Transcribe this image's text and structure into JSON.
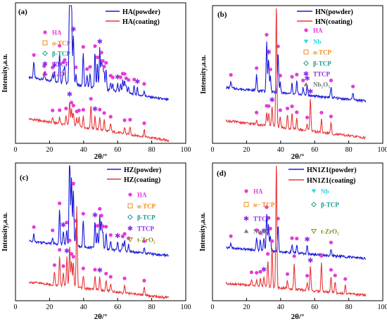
{
  "colors": {
    "powder": "#1a1adb",
    "coating": "#e8383a",
    "HA": "#e83ad8",
    "alpha_TCP": "#f08a1a",
    "beta_TCP": "#1a9a8a",
    "TTCP": "#8a2ae8",
    "CaO": "#c42ab8",
    "Nb": "#1ad8e8",
    "Nb2O5": "#777777",
    "tZrO2": "#8a8a1a"
  },
  "chart_data": [
    {
      "panel": "(a)",
      "type": "line",
      "xlabel": "2θ/°",
      "ylabel": "Intensity,a.u.",
      "xlim": [
        0,
        100
      ],
      "xticks": [
        "0",
        "20",
        "40",
        "60",
        "80",
        "100"
      ],
      "legend": [
        "HA(powder)",
        "HA(coating)"
      ],
      "phases": [
        {
          "label": "HA",
          "marker": "circle",
          "color": "HA"
        },
        {
          "label": "α-TCP",
          "marker": "square",
          "color": "alpha_TCP"
        },
        {
          "label": "β-TCP",
          "marker": "diamond",
          "color": "beta_TCP"
        },
        {
          "label": "TTCP",
          "marker": "star",
          "color": "TTCP"
        },
        {
          "label": "CaO",
          "marker": "club",
          "color": "CaO"
        }
      ],
      "series": [
        {
          "name": "HA(powder)",
          "color": "powder",
          "baseline": 0.47,
          "peaks": [
            [
              10.8,
              0.12
            ],
            [
              16.9,
              0.05
            ],
            [
              21.8,
              0.05
            ],
            [
              22.9,
              0.07
            ],
            [
              25.9,
              0.22
            ],
            [
              28.1,
              0.1
            ],
            [
              28.9,
              0.12
            ],
            [
              31.8,
              0.85
            ],
            [
              32.2,
              0.75
            ],
            [
              32.9,
              0.6
            ],
            [
              34.0,
              0.36
            ],
            [
              35.5,
              0.08
            ],
            [
              39.8,
              0.24
            ],
            [
              42.0,
              0.08
            ],
            [
              43.8,
              0.1
            ],
            [
              46.7,
              0.26
            ],
            [
              48.1,
              0.18
            ],
            [
              49.5,
              0.3
            ],
            [
              50.5,
              0.22
            ],
            [
              51.3,
              0.16
            ],
            [
              52.1,
              0.12
            ],
            [
              53.2,
              0.15
            ],
            [
              55.9,
              0.06
            ],
            [
              57.1,
              0.05
            ],
            [
              60.0,
              0.06
            ],
            [
              61.7,
              0.06
            ],
            [
              63.0,
              0.09
            ],
            [
              64.1,
              0.09
            ],
            [
              65.0,
              0.06
            ],
            [
              66.4,
              0.05
            ],
            [
              69.7,
              0.06
            ],
            [
              71.6,
              0.05
            ],
            [
              75.6,
              0.04
            ]
          ],
          "ends": [
            0.47,
            0.3
          ]
        },
        {
          "name": "HA(coating)",
          "color": "coating",
          "baseline": 0.16,
          "peaks": [
            [
              21.8,
              0.04
            ],
            [
              25.9,
              0.05
            ],
            [
              29.7,
              0.07
            ],
            [
              31.8,
              0.18
            ],
            [
              32.9,
              0.12
            ],
            [
              34.0,
              0.1
            ],
            [
              36.0,
              0.06
            ],
            [
              37.3,
              0.07
            ],
            [
              39.8,
              0.08
            ],
            [
              44.3,
              0.17
            ],
            [
              46.7,
              0.1
            ],
            [
              49.5,
              0.1
            ],
            [
              52.1,
              0.08
            ],
            [
              55.9,
              0.06
            ],
            [
              64.1,
              0.05
            ],
            [
              67.3,
              0.06
            ],
            [
              75.6,
              0.05
            ]
          ],
          "ends": [
            0.16,
            0.0
          ]
        }
      ]
    },
    {
      "panel": "(b)",
      "type": "line",
      "xlabel": "2θ/°",
      "ylabel": "Intensity,a.u.",
      "xlim": [
        0,
        100
      ],
      "xticks": [
        "0",
        "20",
        "40",
        "60",
        "80",
        "100"
      ],
      "legend": [
        "HN(powder)",
        "HN(coating)"
      ],
      "phases": [
        {
          "label": "HA",
          "marker": "circle",
          "color": "HA"
        },
        {
          "label": "Nb",
          "marker": "triangle-down",
          "color": "Nb"
        },
        {
          "label": "α-TCP",
          "marker": "square",
          "color": "alpha_TCP"
        },
        {
          "label": "β-TCP",
          "marker": "diamond",
          "color": "beta_TCP"
        },
        {
          "label": "TTCP",
          "marker": "star",
          "color": "TTCP"
        },
        {
          "label": "Nb₂O₅",
          "marker": "triangle-up",
          "color": "Nb2O5"
        }
      ],
      "series": [
        {
          "name": "HN(powder)",
          "color": "powder",
          "baseline": 0.4,
          "peaks": [
            [
              10.8,
              0.05
            ],
            [
              25.9,
              0.12
            ],
            [
              31.8,
              0.38
            ],
            [
              32.9,
              0.25
            ],
            [
              34.0,
              0.12
            ],
            [
              38.5,
              0.3
            ],
            [
              39.8,
              0.08
            ],
            [
              46.7,
              0.08
            ],
            [
              49.5,
              0.1
            ],
            [
              53.2,
              0.06
            ],
            [
              55.6,
              0.08
            ],
            [
              69.6,
              0.08
            ],
            [
              82.5,
              0.05
            ]
          ],
          "ends": [
            0.4,
            0.3
          ]
        },
        {
          "name": "HN(coating)",
          "color": "coating",
          "baseline": 0.15,
          "peaks": [
            [
              25.9,
              0.04
            ],
            [
              31.8,
              0.1
            ],
            [
              33.0,
              0.1
            ],
            [
              35.0,
              0.15
            ],
            [
              37.5,
              0.95
            ],
            [
              39.8,
              0.08
            ],
            [
              44.0,
              0.1
            ],
            [
              46.7,
              0.12
            ],
            [
              49.5,
              0.08
            ],
            [
              55.6,
              0.05
            ],
            [
              57.5,
              0.25
            ],
            [
              64.0,
              0.1
            ],
            [
              69.6,
              0.08
            ]
          ],
          "ends": [
            0.15,
            0.02
          ]
        }
      ]
    },
    {
      "panel": "(c)",
      "type": "line",
      "xlabel": "2θ/°",
      "ylabel": "Intensity,a.u.",
      "xlim": [
        0,
        100
      ],
      "xticks": [
        "0",
        "20",
        "40",
        "60",
        "80",
        "100"
      ],
      "legend": [
        "HZ(powder)",
        "HZ(coating)"
      ],
      "phases": [
        {
          "label": "HA",
          "marker": "circle",
          "color": "HA"
        },
        {
          "label": "α-TCP",
          "marker": "square",
          "color": "alpha_TCP"
        },
        {
          "label": "β-TCP",
          "marker": "diamond",
          "color": "beta_TCP"
        },
        {
          "label": "TTCP",
          "marker": "star",
          "color": "TTCP"
        },
        {
          "label": "t-ZrO₂",
          "marker": "triangle-down-open",
          "color": "tZrO2"
        }
      ],
      "series": [
        {
          "name": "HZ(powder)",
          "color": "powder",
          "baseline": 0.43,
          "peaks": [
            [
              10.8,
              0.06
            ],
            [
              21.8,
              0.05
            ],
            [
              25.9,
              0.26
            ],
            [
              28.1,
              0.1
            ],
            [
              30.1,
              0.12
            ],
            [
              31.8,
              0.85
            ],
            [
              32.9,
              0.52
            ],
            [
              34.0,
              0.42
            ],
            [
              35.5,
              0.14
            ],
            [
              39.8,
              0.2
            ],
            [
              46.7,
              0.2
            ],
            [
              48.1,
              0.12
            ],
            [
              49.5,
              0.25
            ],
            [
              50.5,
              0.2
            ],
            [
              51.3,
              0.12
            ],
            [
              53.2,
              0.12
            ],
            [
              55.9,
              0.06
            ],
            [
              60.0,
              0.06
            ],
            [
              63.0,
              0.06
            ],
            [
              64.1,
              0.08
            ],
            [
              66.4,
              0.05
            ],
            [
              75.6,
              0.04
            ]
          ],
          "ends": [
            0.43,
            0.32
          ]
        },
        {
          "name": "HZ(coating)",
          "color": "coating",
          "baseline": 0.12,
          "peaks": [
            [
              22.9,
              0.1
            ],
            [
              25.9,
              0.22
            ],
            [
              28.1,
              0.1
            ],
            [
              30.2,
              0.22
            ],
            [
              31.8,
              0.3
            ],
            [
              32.9,
              0.2
            ],
            [
              34.0,
              0.18
            ],
            [
              36.0,
              0.62
            ],
            [
              39.8,
              0.1
            ],
            [
              46.7,
              0.1
            ],
            [
              49.5,
              0.1
            ],
            [
              53.2,
              0.08
            ],
            [
              55.9,
              0.06
            ],
            [
              64.1,
              0.06
            ],
            [
              75.6,
              0.06
            ]
          ],
          "ends": [
            0.12,
            0.0
          ]
        }
      ]
    },
    {
      "panel": "(d)",
      "type": "line",
      "xlabel": "2θ/°",
      "ylabel": "Intensity,a.u.",
      "xlim": [
        0,
        100
      ],
      "xticks": [
        "0",
        "20",
        "40",
        "60",
        "80",
        "100"
      ],
      "legend": [
        "HN1Z1(powder)",
        "HN1Z1(coating)"
      ],
      "phases": [
        {
          "label": "HA",
          "marker": "circle",
          "color": "HA"
        },
        {
          "label": "Nb",
          "marker": "triangle-down",
          "color": "Nb"
        },
        {
          "label": "α− TCP",
          "marker": "square",
          "color": "alpha_TCP"
        },
        {
          "label": "β-TCP",
          "marker": "diamond",
          "color": "beta_TCP"
        },
        {
          "label": "TTCP",
          "marker": "star",
          "color": "TTCP"
        },
        {
          "label": "Nb₂O₅",
          "marker": "triangle-up",
          "color": "Nb2O5"
        },
        {
          "label": "t-ZrO₂",
          "marker": "triangle-down-open",
          "color": "tZrO2"
        }
      ],
      "series": [
        {
          "name": "HN1Z1(powder)",
          "color": "powder",
          "baseline": 0.38,
          "peaks": [
            [
              10.8,
              0.04
            ],
            [
              25.9,
              0.1
            ],
            [
              28.1,
              0.08
            ],
            [
              30.2,
              0.1
            ],
            [
              31.8,
              0.28
            ],
            [
              32.9,
              0.2
            ],
            [
              34.0,
              0.12
            ],
            [
              38.5,
              0.2
            ],
            [
              46.7,
              0.06
            ],
            [
              49.5,
              0.06
            ],
            [
              55.6,
              0.06
            ],
            [
              69.6,
              0.05
            ]
          ],
          "ends": [
            0.38,
            0.3
          ]
        },
        {
          "name": "HN1Z1(coating)",
          "color": "coating",
          "baseline": 0.11,
          "peaks": [
            [
              22.9,
              0.05
            ],
            [
              25.9,
              0.05
            ],
            [
              28.1,
              0.06
            ],
            [
              30.2,
              0.08
            ],
            [
              32.5,
              0.2
            ],
            [
              35.0,
              0.3
            ],
            [
              37.5,
              0.98
            ],
            [
              44.0,
              0.06
            ],
            [
              48.0,
              0.2
            ],
            [
              55.6,
              0.06
            ],
            [
              57.5,
              0.18
            ],
            [
              64.0,
              0.22
            ],
            [
              69.6,
              0.12
            ],
            [
              72.0,
              0.08
            ],
            [
              78.0,
              0.06
            ]
          ],
          "ends": [
            0.11,
            0.02
          ]
        }
      ]
    }
  ]
}
